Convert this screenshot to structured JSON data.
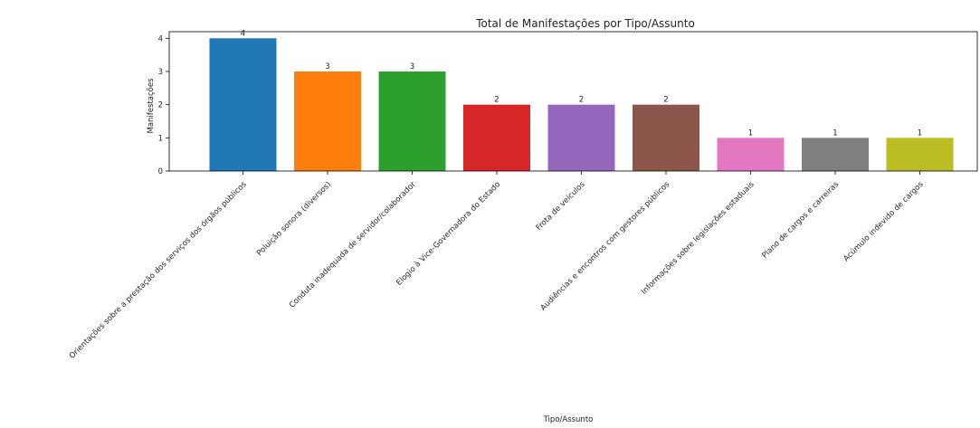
{
  "chart_data": {
    "type": "bar",
    "title": "Total de Manifestações por Tipo/Assunto",
    "xlabel": "Tipo/Assunto",
    "ylabel": "Manifestações",
    "categories": [
      "Orientações sobre a prestação dos serviços dos órgãos públicos",
      "Poluição sonora (diversos)",
      "Conduta inadequada de servidor/colaborador",
      "Elogio à Vice-Governadora do Estado",
      "Frota de veículos",
      "Audiências e encontros com gestores públicos",
      "Informações sobre legislações estaduais",
      "Plano de cargos e carreiras",
      "Acúmulo indevido de cargos"
    ],
    "values": [
      4,
      3,
      3,
      2,
      2,
      2,
      1,
      1,
      1
    ],
    "data_labels": [
      "4",
      "3",
      "3",
      "2",
      "2",
      "2",
      "1",
      "1",
      "1"
    ],
    "colors": [
      "#1f77b4",
      "#ff7f0e",
      "#2ca02c",
      "#d62728",
      "#9467bd",
      "#8c564b",
      "#e377c2",
      "#7f7f7f",
      "#bcbd22"
    ],
    "yticks": [
      0,
      1,
      2,
      3,
      4
    ],
    "ytick_labels": [
      "0",
      "1",
      "2",
      "3",
      "4"
    ],
    "ylim": [
      0,
      4.2
    ],
    "grid": false,
    "legend": "none"
  }
}
